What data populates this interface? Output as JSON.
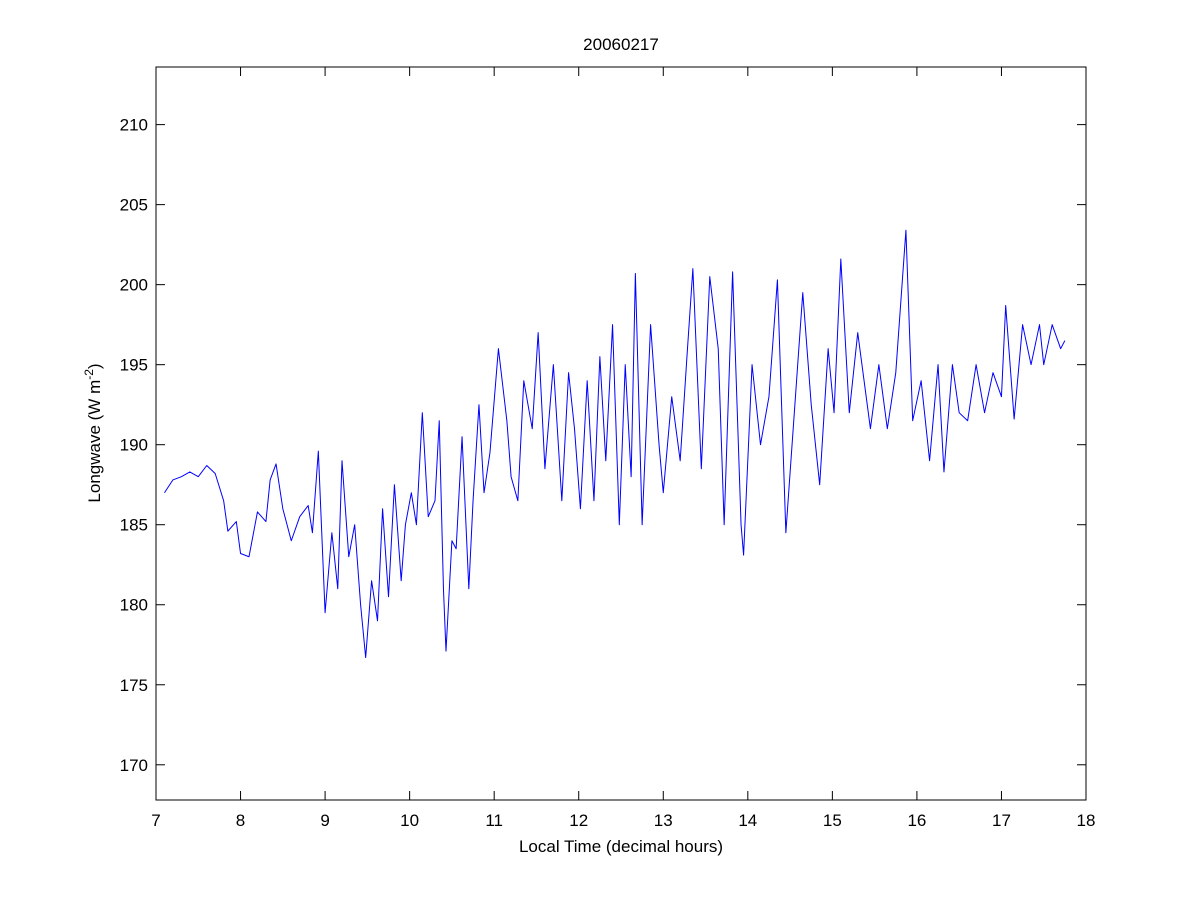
{
  "chart_data": {
    "type": "line",
    "title": "20060217",
    "xlabel": "Local Time (decimal hours)",
    "ylabel": {
      "text": "Longwave (W m",
      "superscript": "-2",
      "suffix": ")"
    },
    "xlim": [
      7,
      18
    ],
    "ylim": [
      167.8,
      213.6
    ],
    "xticks": [
      7,
      8,
      9,
      10,
      11,
      12,
      13,
      14,
      15,
      16,
      17,
      18
    ],
    "yticks": [
      170,
      175,
      180,
      185,
      190,
      195,
      200,
      205,
      210
    ],
    "grid": false,
    "series": [
      {
        "name": "Longwave",
        "color": "#0000ff",
        "x": [
          7.1,
          7.2,
          7.3,
          7.4,
          7.5,
          7.6,
          7.7,
          7.8,
          7.85,
          7.95,
          8.0,
          8.1,
          8.2,
          8.3,
          8.35,
          8.42,
          8.5,
          8.6,
          8.7,
          8.8,
          8.85,
          8.92,
          9.0,
          9.08,
          9.15,
          9.2,
          9.28,
          9.35,
          9.42,
          9.48,
          9.55,
          9.62,
          9.68,
          9.75,
          9.82,
          9.9,
          9.95,
          10.02,
          10.08,
          10.15,
          10.22,
          10.3,
          10.35,
          10.4,
          10.43,
          10.5,
          10.55,
          10.62,
          10.7,
          10.75,
          10.82,
          10.88,
          10.95,
          11.05,
          11.15,
          11.2,
          11.28,
          11.35,
          11.45,
          11.52,
          11.6,
          11.7,
          11.8,
          11.88,
          11.95,
          12.02,
          12.1,
          12.18,
          12.25,
          12.32,
          12.4,
          12.48,
          12.55,
          12.62,
          12.67,
          12.75,
          12.85,
          12.95,
          13.0,
          13.1,
          13.2,
          13.28,
          13.35,
          13.45,
          13.55,
          13.65,
          13.72,
          13.82,
          13.92,
          13.95,
          14.05,
          14.15,
          14.25,
          14.35,
          14.45,
          14.55,
          14.65,
          14.75,
          14.85,
          14.95,
          15.02,
          15.1,
          15.2,
          15.3,
          15.45,
          15.55,
          15.65,
          15.75,
          15.87,
          15.95,
          16.05,
          16.15,
          16.25,
          16.32,
          16.42,
          16.5,
          16.6,
          16.7,
          16.8,
          16.9,
          17.0,
          17.05,
          17.15,
          17.25,
          17.35,
          17.45,
          17.5,
          17.6,
          17.7,
          17.75
        ],
        "values": [
          187.0,
          187.8,
          188.0,
          188.3,
          188.0,
          188.7,
          188.2,
          186.5,
          184.6,
          185.2,
          183.2,
          183.0,
          185.8,
          185.2,
          187.8,
          188.8,
          186.0,
          184.0,
          185.5,
          186.2,
          184.5,
          189.6,
          179.5,
          184.5,
          181.0,
          189.0,
          183.0,
          185.0,
          180.0,
          176.7,
          181.5,
          179.0,
          186.0,
          180.5,
          187.5,
          181.5,
          185.0,
          187.0,
          185.0,
          192.0,
          185.5,
          186.5,
          191.5,
          181.0,
          177.1,
          184.0,
          183.5,
          190.5,
          181.0,
          186.5,
          192.5,
          187.0,
          189.5,
          196.0,
          191.5,
          188.0,
          186.5,
          194.0,
          191.0,
          197.0,
          188.5,
          195.0,
          186.5,
          194.5,
          191.0,
          186.0,
          194.0,
          186.5,
          195.5,
          189.0,
          197.5,
          185.0,
          195.0,
          188.0,
          200.7,
          185.0,
          197.5,
          190.0,
          187.0,
          193.0,
          189.0,
          195.5,
          201.0,
          188.5,
          200.5,
          196.0,
          185.0,
          200.8,
          185.0,
          183.1,
          195.0,
          190.0,
          193.0,
          200.3,
          184.5,
          192.0,
          199.5,
          192.5,
          187.5,
          196.0,
          192.0,
          201.6,
          192.0,
          197.0,
          191.0,
          195.0,
          191.0,
          194.5,
          203.4,
          191.5,
          194.0,
          189.0,
          195.0,
          188.3,
          195.0,
          192.0,
          191.5,
          195.0,
          192.0,
          194.5,
          193.0,
          198.7,
          191.6,
          197.5,
          195.0,
          197.5,
          195.0,
          197.5,
          196.0,
          196.5
        ]
      }
    ]
  }
}
